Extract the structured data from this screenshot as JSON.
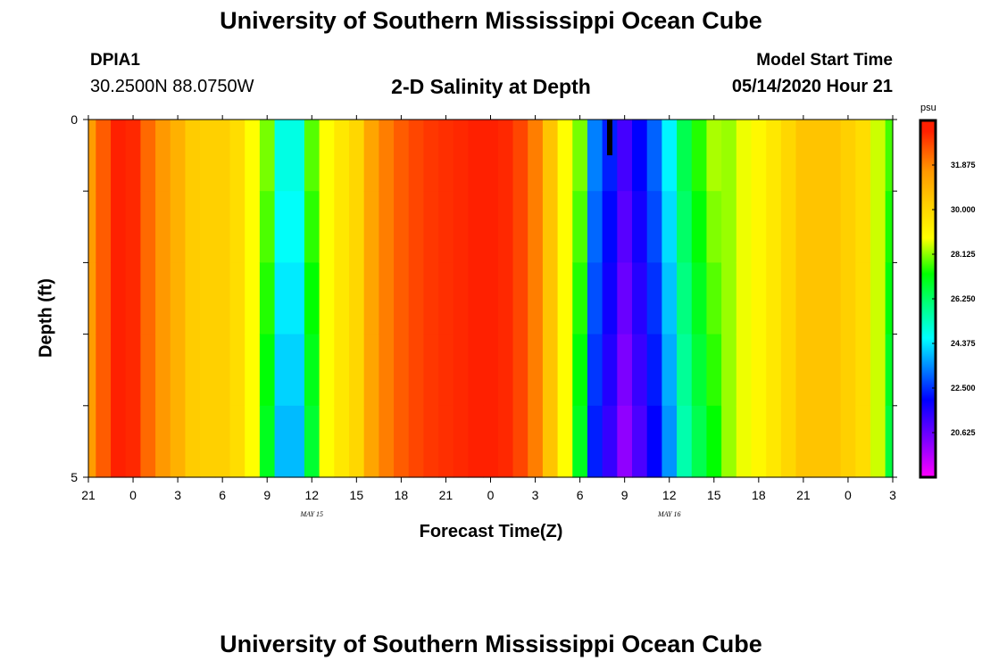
{
  "header": {
    "title": "University of Southern Mississippi Ocean Cube",
    "station_id": "DPIA1",
    "coordinates": "30.2500N 88.0750W",
    "model_start_label": "Model Start Time",
    "model_start_value": "05/14/2020 Hour 21"
  },
  "footer": {
    "title": "University of Southern Mississippi Ocean Cube"
  },
  "chart_data": {
    "type": "heatmap",
    "title": "2-D Salinity at Depth",
    "xlabel": "Forecast Time(Z)",
    "ylabel": "Depth (ft)",
    "x_range_hours": [
      0,
      54
    ],
    "x_tick_labels": [
      "21",
      "0",
      "3",
      "6",
      "9",
      "12",
      "15",
      "18",
      "21",
      "0",
      "3",
      "6",
      "9",
      "12",
      "15",
      "18",
      "21",
      "0",
      "3"
    ],
    "date_labels": [
      {
        "hour": 15,
        "text": "MAY 15"
      },
      {
        "hour": 39,
        "text": "MAY 16"
      }
    ],
    "ylim": [
      0,
      5
    ],
    "y_tick_labels": [
      "0",
      "5"
    ],
    "depth_levels_ft": [
      0,
      1,
      2,
      3,
      4,
      5
    ],
    "colorbar": {
      "unit": "psu",
      "min": 18.75,
      "max": 33.75,
      "tick_values": [
        20.625,
        22.5,
        24.375,
        26.25,
        28.125,
        30.0,
        31.875
      ],
      "tick_labels": [
        "20.625",
        "22.500",
        "24.375",
        "26.250",
        "28.125",
        "30.000",
        "31.875"
      ],
      "stops": [
        {
          "value": 18.75,
          "color": "#ff00ff"
        },
        {
          "value": 20.3,
          "color": "#8000ff"
        },
        {
          "value": 22.0,
          "color": "#0000ff"
        },
        {
          "value": 23.3,
          "color": "#0080ff"
        },
        {
          "value": 24.6,
          "color": "#00ffff"
        },
        {
          "value": 26.0,
          "color": "#00ff80"
        },
        {
          "value": 27.3,
          "color": "#00ff00"
        },
        {
          "value": 28.8,
          "color": "#ffff00"
        },
        {
          "value": 30.2,
          "color": "#ffd000"
        },
        {
          "value": 31.6,
          "color": "#ff9900"
        },
        {
          "value": 32.6,
          "color": "#ff5500"
        },
        {
          "value": 33.3,
          "color": "#ff2000"
        }
      ]
    },
    "time_hours": [
      0,
      1,
      2,
      3,
      4,
      5,
      6,
      7,
      8,
      9,
      10,
      11,
      12,
      13,
      14,
      15,
      16,
      17,
      18,
      19,
      20,
      21,
      22,
      23,
      24,
      25,
      26,
      27,
      28,
      29,
      30,
      31,
      32,
      33,
      34,
      35,
      36,
      37,
      38,
      39,
      40,
      41,
      42,
      43,
      44,
      45,
      46,
      47,
      48,
      49,
      50,
      51,
      52,
      53,
      54
    ],
    "salinity_psu": [
      31.5,
      32.5,
      33.3,
      33.2,
      32.3,
      31.6,
      31.0,
      30.3,
      30.2,
      30.2,
      29.8,
      28.8,
      27.5,
      24.4,
      24.4,
      27.3,
      28.8,
      29.5,
      30.0,
      31.3,
      32.0,
      32.5,
      32.8,
      33.0,
      33.1,
      33.2,
      33.3,
      33.3,
      33.2,
      32.8,
      32.0,
      30.5,
      28.8,
      27.5,
      22.8,
      21.8,
      20.6,
      21.5,
      22.5,
      24.0,
      26.0,
      27.0,
      27.8,
      28.2,
      28.7,
      29.0,
      29.5,
      30.0,
      30.5,
      30.5,
      30.5,
      30.2,
      29.8,
      28.5,
      27.2
    ],
    "surface_marker_hour": 35
  }
}
